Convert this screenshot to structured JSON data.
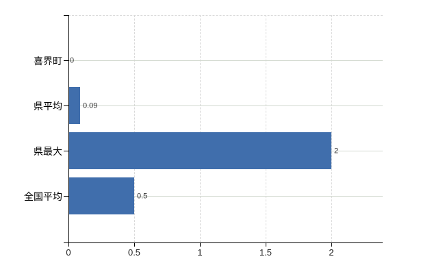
{
  "chart_data": {
    "type": "bar",
    "orientation": "horizontal",
    "title": "",
    "categories": [
      "喜界町",
      "県平均",
      "県最大",
      "全国平均"
    ],
    "values": [
      0,
      0.09,
      2,
      0.5
    ],
    "data_labels": [
      "0",
      "0.09",
      "2",
      "0.5"
    ],
    "xticks": [
      {
        "value": 0,
        "label": "0"
      },
      {
        "value": 0.5,
        "label": "0.5"
      },
      {
        "value": 1,
        "label": "1"
      },
      {
        "value": 1.5,
        "label": "1.5"
      },
      {
        "value": 2,
        "label": "2"
      }
    ],
    "xlim": [
      0,
      2.4
    ],
    "grid": true,
    "legend": false,
    "colors": {
      "bar": "#406eac",
      "h_gridline": "#d3d9d0",
      "v_gridline": "#d9d9d9",
      "axis": "#000000",
      "data_label": "#333333"
    }
  }
}
